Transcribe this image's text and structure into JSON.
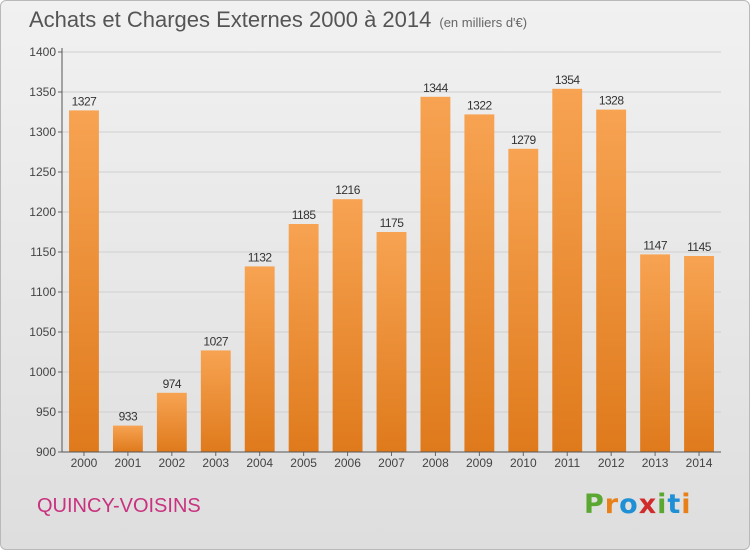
{
  "title": "Achats et Charges Externes 2000 à 2014",
  "unit": "(en milliers d'€)",
  "commune": "QUINCY-VOISINS",
  "logo": [
    "P",
    "r",
    "o",
    "x",
    "i",
    "t",
    "i"
  ],
  "colors": {
    "bar_top": "#f7a352",
    "bar_bottom": "#df7a1c",
    "commune": "#c8327f",
    "logo": [
      "#5aa832",
      "#e8801a",
      "#1f8fd6",
      "#d12c2c",
      "#5aa832",
      "#1f8fd6",
      "#e8801a"
    ]
  },
  "chart_data": {
    "type": "bar",
    "categories": [
      "2000",
      "2001",
      "2002",
      "2003",
      "2004",
      "2005",
      "2006",
      "2007",
      "2008",
      "2009",
      "2010",
      "2011",
      "2012",
      "2013",
      "2014"
    ],
    "values": [
      1327,
      933,
      974,
      1027,
      1132,
      1185,
      1216,
      1175,
      1344,
      1322,
      1279,
      1354,
      1328,
      1147,
      1145
    ],
    "data_labels": [
      "1327",
      "933",
      "974",
      "1027",
      "1132",
      "1185",
      "1216",
      "1175",
      "1344",
      "1322",
      "1279",
      "1354",
      "1328",
      "1147",
      "1145"
    ],
    "yticks": [
      900,
      950,
      1000,
      1050,
      1100,
      1150,
      1200,
      1250,
      1300,
      1350,
      1400
    ],
    "ylim": [
      900,
      1400
    ],
    "grid": true
  }
}
